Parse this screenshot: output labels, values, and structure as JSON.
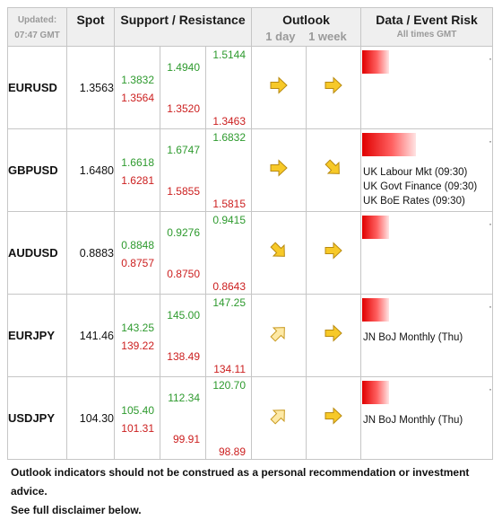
{
  "header": {
    "updated_label": "Updated:",
    "updated_time": "07:47 GMT",
    "spot": "Spot",
    "sr": "Support / Resistance",
    "outlook": "Outlook",
    "day": "1 day",
    "week": "1 week",
    "event": "Data / Event Risk",
    "event_sub": "All times GMT"
  },
  "rows": [
    {
      "pair": "EURUSD",
      "spot": "1.3563",
      "c1": [
        "1.3832",
        "1.3564"
      ],
      "c2": [
        "1.4940",
        "1.3520"
      ],
      "c3": [
        "1.5144",
        "1.3463"
      ],
      "day": "right",
      "week": "right",
      "risk": 0.25,
      "events": []
    },
    {
      "pair": "GBPUSD",
      "spot": "1.6480",
      "c1": [
        "1.6618",
        "1.6281"
      ],
      "c2": [
        "1.6747",
        "1.5855"
      ],
      "c3": [
        "1.6832",
        "1.5815"
      ],
      "day": "right",
      "week": "down-right",
      "risk": 0.5,
      "events": [
        "UK Labour Mkt (09:30)",
        "UK Govt Finance (09:30)",
        "UK BoE Rates (09:30)"
      ]
    },
    {
      "pair": "AUDUSD",
      "spot": "0.8883",
      "c1": [
        "0.8848",
        "0.8757"
      ],
      "c2": [
        "0.9276",
        "0.8750"
      ],
      "c3": [
        "0.9415",
        "0.8643"
      ],
      "day": "down-right",
      "week": "right",
      "risk": 0.25,
      "events": []
    },
    {
      "pair": "EURJPY",
      "spot": "141.46",
      "c1": [
        "143.25",
        "139.22"
      ],
      "c2": [
        "145.00",
        "138.49"
      ],
      "c3": [
        "147.25",
        "134.11"
      ],
      "day": "up-right",
      "week": "right",
      "risk": 0.25,
      "events": [
        "JN BoJ Monthly (Thu)"
      ]
    },
    {
      "pair": "USDJPY",
      "spot": "104.30",
      "c1": [
        "105.40",
        "101.31"
      ],
      "c2": [
        "112.34",
        "99.91"
      ],
      "c3": [
        "120.70",
        "98.89"
      ],
      "day": "up-right",
      "week": "right",
      "risk": 0.25,
      "events": [
        "JN BoJ Monthly (Thu)"
      ]
    }
  ],
  "footer": {
    "line1": "Outlook indicators should not be construed as a personal recommendation or investment advice.",
    "line2": "See full disclaimer below."
  }
}
